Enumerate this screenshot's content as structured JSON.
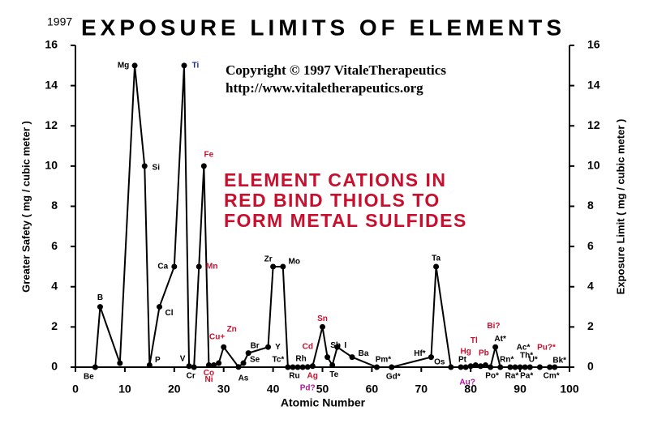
{
  "chart_data": {
    "type": "line",
    "title": "EXPOSURE LIMITS OF ELEMENTS",
    "year": "1997",
    "copyright": [
      "Copyright © 1997 VitaleTherapeutics",
      "http://www.vitaletherapeutics.org"
    ],
    "annotation": [
      "ELEMENT CATIONS IN",
      "RED BIND THIOLS TO",
      "FORM METAL SULFIDES"
    ],
    "annotation_color": "#c8102e",
    "xlabel": "Atomic Number",
    "ylabel": "Greater Safety  ( mg / cubic meter )",
    "y2label": "Exposure Limit  ( mg / cubic meter )",
    "xlim": [
      0,
      100
    ],
    "xticks": [
      0,
      10,
      20,
      30,
      40,
      50,
      60,
      70,
      80,
      90,
      100
    ],
    "ylim": [
      0,
      16
    ],
    "yticks": [
      0,
      2,
      4,
      6,
      8,
      10,
      12,
      14,
      16
    ],
    "y2lim": [
      0,
      16
    ],
    "y2ticks": [
      0,
      2,
      4,
      6,
      8,
      10,
      12,
      14,
      16
    ],
    "color": "#000000",
    "x": [
      4,
      5,
      9,
      12,
      14,
      15,
      17,
      20,
      22,
      23,
      24,
      25,
      26,
      27,
      28,
      29,
      30,
      33,
      34,
      35,
      39,
      40,
      42,
      43,
      44,
      45,
      46,
      47,
      48,
      50,
      51,
      52,
      53,
      56,
      61,
      64,
      72,
      73,
      76,
      78,
      79,
      80,
      81,
      82,
      83,
      84,
      85,
      86,
      88,
      89,
      90,
      91,
      92,
      94,
      96,
      97
    ],
    "values": [
      0,
      3,
      0.2,
      15,
      10,
      0.1,
      3,
      5,
      15,
      0.05,
      0,
      5,
      10,
      0.1,
      0.1,
      0.2,
      1,
      0.01,
      0.2,
      0.7,
      1,
      5,
      5,
      0,
      0,
      0,
      0,
      0.01,
      0.05,
      2,
      0.5,
      0.1,
      1,
      0.5,
      0,
      0,
      0.5,
      5,
      0,
      0.002,
      0,
      0.05,
      0.1,
      0.05,
      0.1,
      0,
      1,
      0,
      0,
      0,
      0,
      0,
      0,
      0,
      0,
      0
    ],
    "labels": [
      "Be",
      "B",
      null,
      "Mg",
      "Si",
      "P",
      "Cl",
      "Ca",
      "Ti",
      "V",
      "Cr",
      "Mn",
      "Fe",
      "Co",
      "Ni",
      "Cu+",
      "Zn",
      "As",
      "Se",
      "Br",
      "Y",
      "Zr",
      "Mo",
      "Tc*",
      "Ru",
      "Rh",
      "Pd?",
      "Ag",
      "Cd",
      "Sn",
      "Sb",
      "Te",
      "I",
      "Ba",
      "Pm*",
      "Gd*",
      "Hf*",
      "Ta",
      "Os",
      "Pt",
      "Au?",
      "Hg",
      "Tl",
      "Pb",
      "Bi?",
      "Po*",
      "At*",
      "Rn*",
      "Ra*",
      "Ac*",
      "Th*",
      "Pa*",
      "U*",
      "Pu?*",
      "Cm*",
      "Bk*"
    ],
    "label_colors": [
      "#000",
      "#000",
      null,
      "#000",
      "#000",
      "#000",
      "#000",
      "#000",
      "#1a2a9c",
      "#000",
      "#000",
      "#c8102e",
      "#c8102e",
      "#c8102e",
      "#c8102e",
      "#c8102e",
      "#c8102e",
      "#000",
      "#000",
      "#000",
      "#000",
      "#000",
      "#000",
      "#000",
      "#000",
      "#000",
      "#b0179a",
      "#c8102e",
      "#c8102e",
      "#c8102e",
      "#000",
      "#000",
      "#000",
      "#000",
      "#000",
      "#000",
      "#000",
      "#000",
      "#000",
      "#000",
      "#b0179a",
      "#c8102e",
      "#c8102e",
      "#c8102e",
      "#c8102e",
      "#000",
      "#000",
      "#000",
      "#000",
      "#000",
      "#000",
      "#000",
      "#000",
      "#c8102e",
      "#000",
      "#000"
    ]
  }
}
